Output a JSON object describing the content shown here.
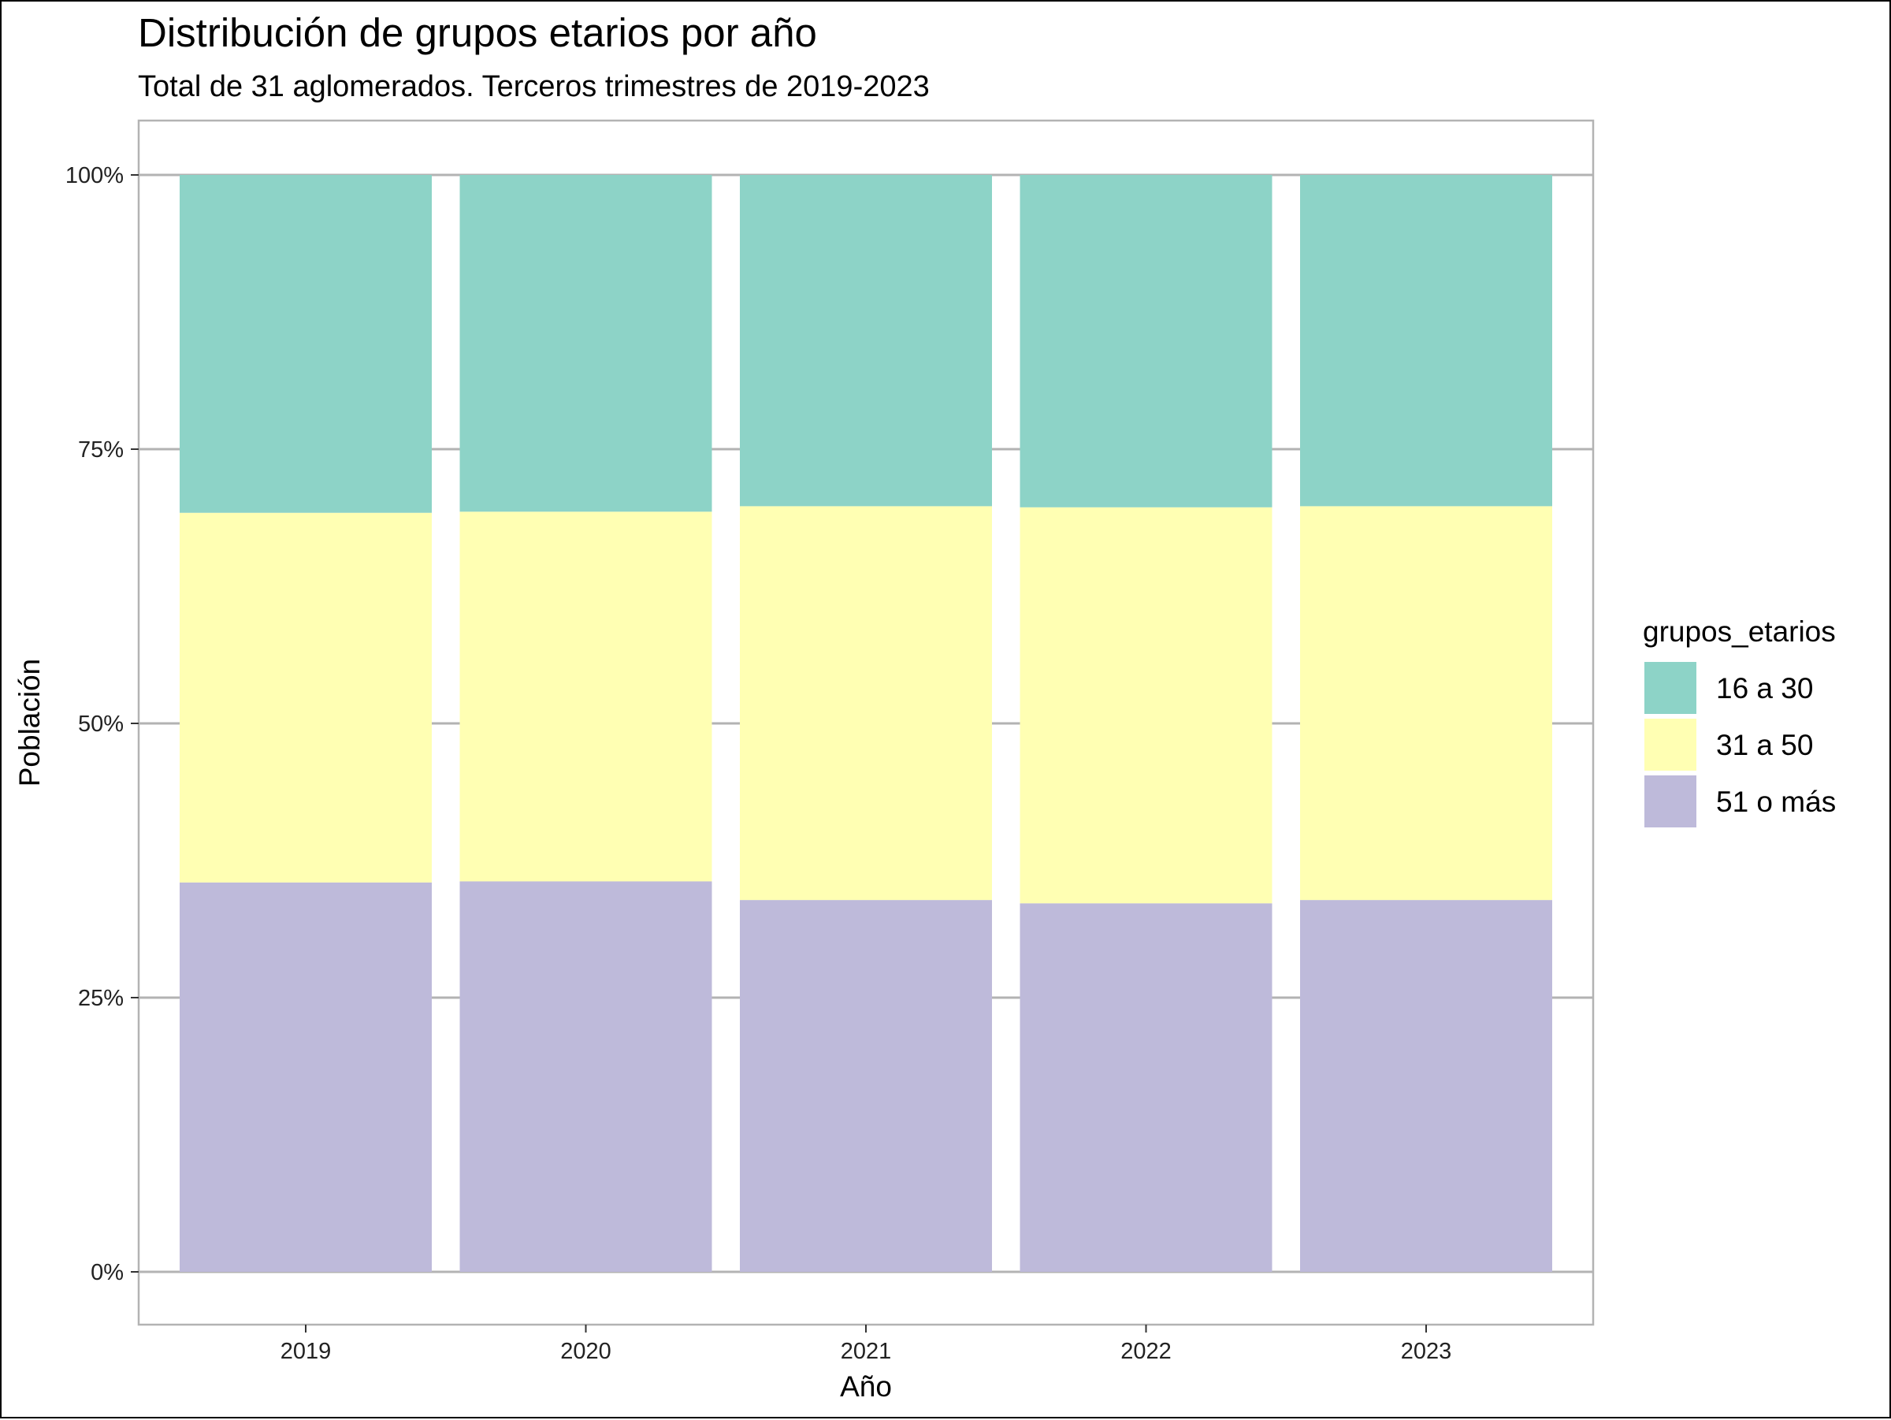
{
  "chart_data": {
    "type": "bar",
    "stacked": true,
    "title": "Distribución de grupos etarios por año",
    "subtitle": "Total de 31 aglomerados. Terceros trimestres de 2019-2023",
    "xlabel": "Año",
    "ylabel": "Población",
    "ylim": [
      0,
      1
    ],
    "y_ticks": [
      {
        "value": 0,
        "label": "0%"
      },
      {
        "value": 0.25,
        "label": "25%"
      },
      {
        "value": 0.5,
        "label": "50%"
      },
      {
        "value": 0.75,
        "label": "75%"
      },
      {
        "value": 1,
        "label": "100%"
      }
    ],
    "grid": true,
    "legend": {
      "title": "grupos_etarios",
      "position": "right"
    },
    "categories": [
      "2019",
      "2020",
      "2021",
      "2022",
      "2023"
    ],
    "series": [
      {
        "name": "51 o más",
        "color": "#BEBADA",
        "values": [
          0.355,
          0.356,
          0.339,
          0.336,
          0.339
        ]
      },
      {
        "name": "31 a 50",
        "color": "#FFFFB3",
        "values": [
          0.337,
          0.337,
          0.359,
          0.361,
          0.359
        ]
      },
      {
        "name": "16 a 30",
        "color": "#8DD3C7",
        "values": [
          0.308,
          0.307,
          0.302,
          0.303,
          0.302
        ]
      }
    ],
    "legend_order": [
      "16 a 30",
      "31 a 50",
      "51 o más"
    ]
  }
}
